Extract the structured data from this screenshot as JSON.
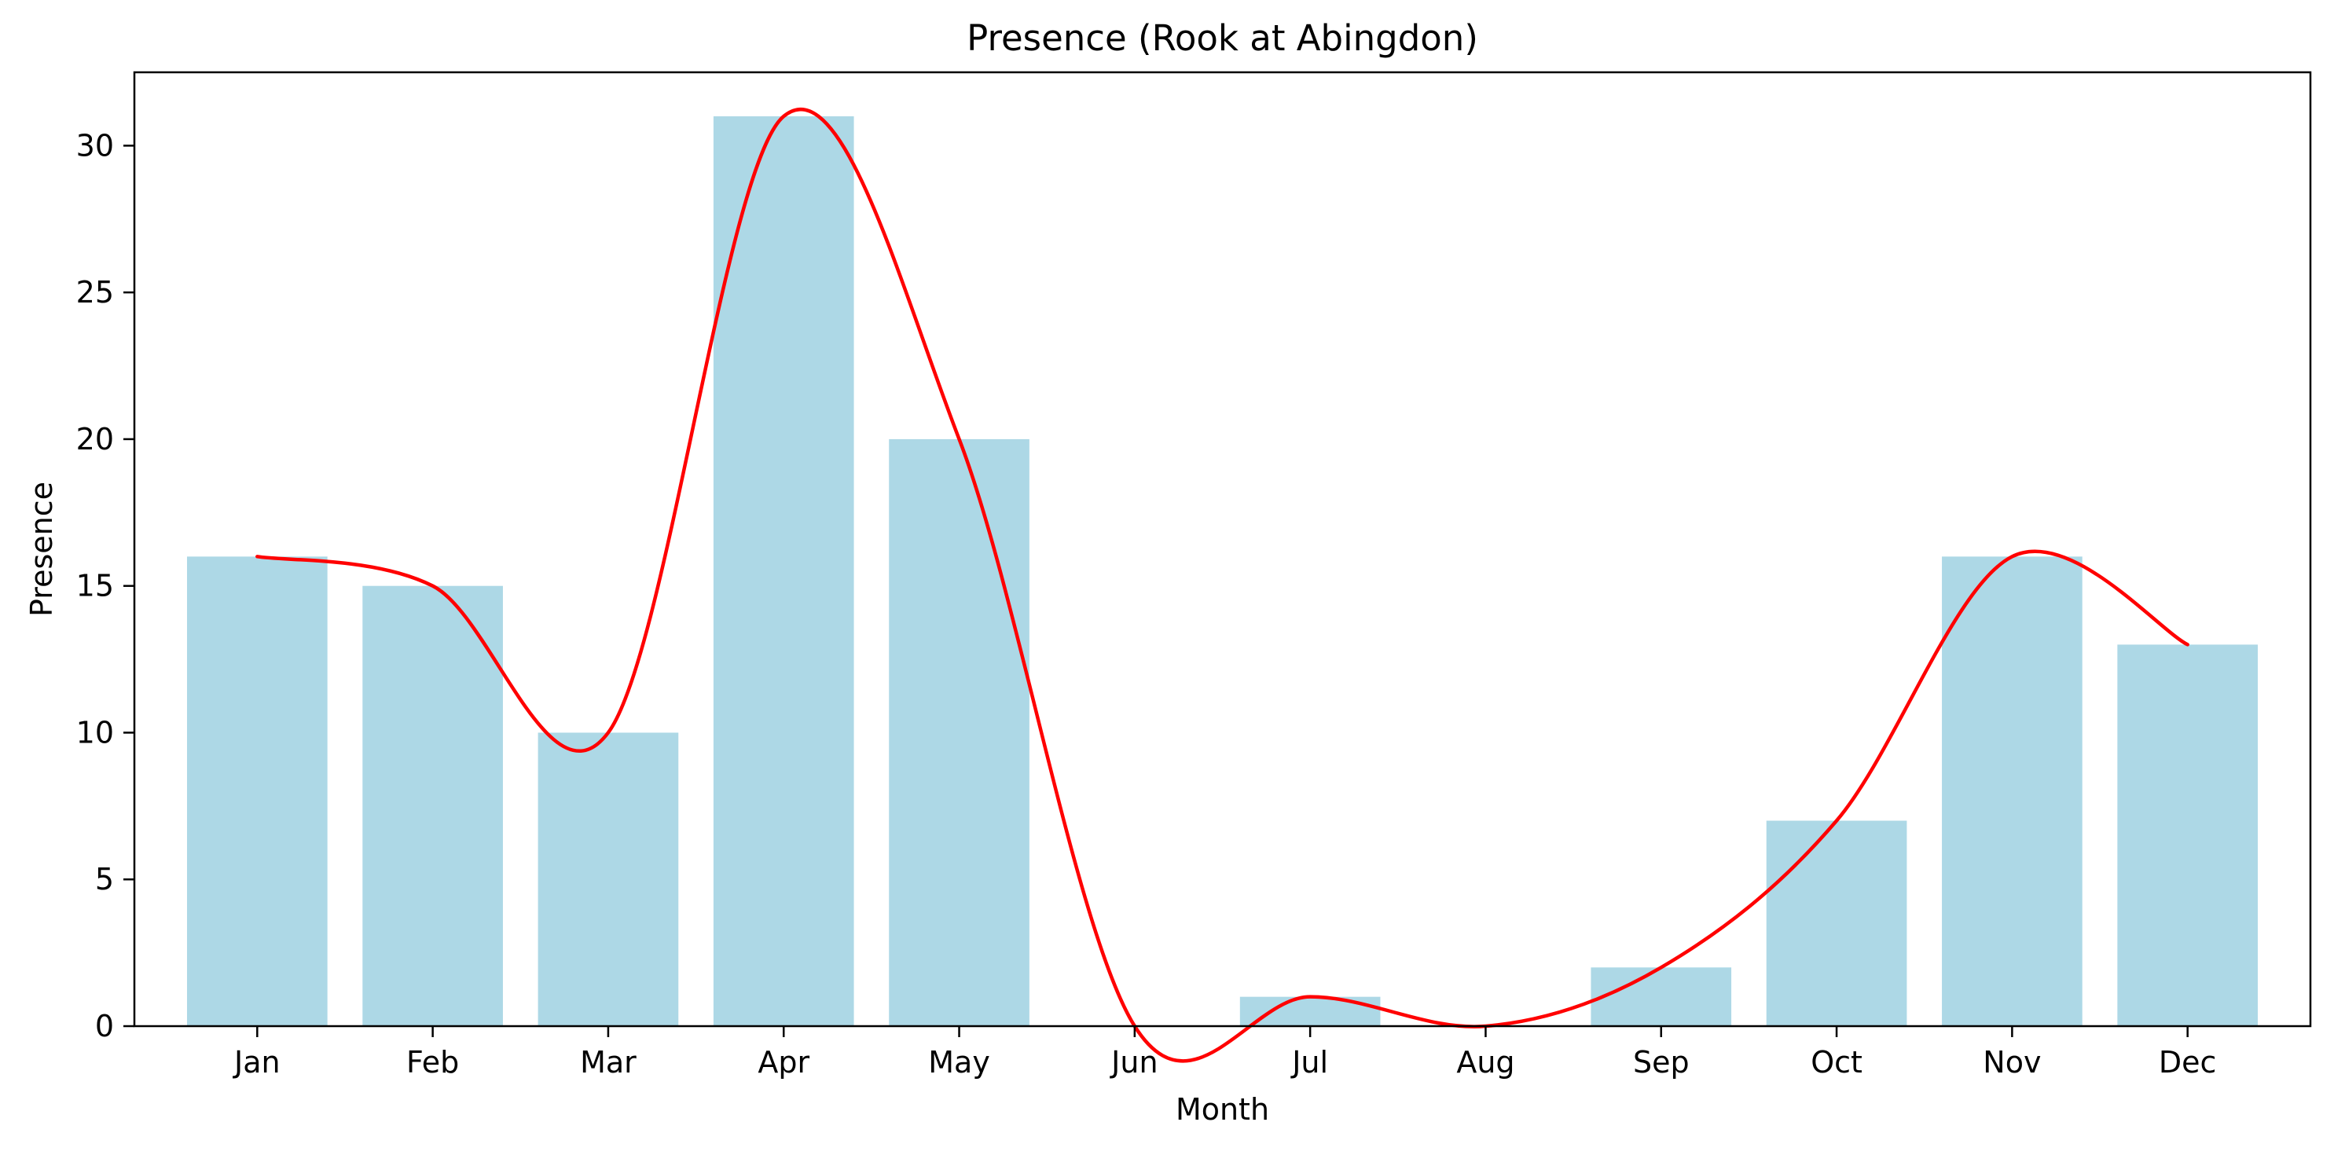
{
  "chart_data": {
    "type": "bar",
    "title": "Presence (Rook at Abingdon)",
    "xlabel": "Month",
    "ylabel": "Presence",
    "categories": [
      "Jan",
      "Feb",
      "Mar",
      "Apr",
      "May",
      "Jun",
      "Jul",
      "Aug",
      "Sep",
      "Oct",
      "Nov",
      "Dec"
    ],
    "series": [
      {
        "values": [
          16,
          15,
          10,
          31,
          20,
          0,
          1,
          0,
          2,
          7,
          16,
          13
        ],
        "color": "#add8e6",
        "kind": "bar"
      },
      {
        "values": [
          16,
          15,
          10,
          31,
          20,
          0,
          1,
          0,
          2,
          7,
          16,
          13
        ],
        "color": "#ff0000",
        "kind": "smooth-line"
      }
    ],
    "ylim": [
      0,
      32.5
    ],
    "yticks": [
      0,
      5,
      10,
      15,
      20,
      25,
      30
    ],
    "grid": false,
    "legend": "none"
  }
}
